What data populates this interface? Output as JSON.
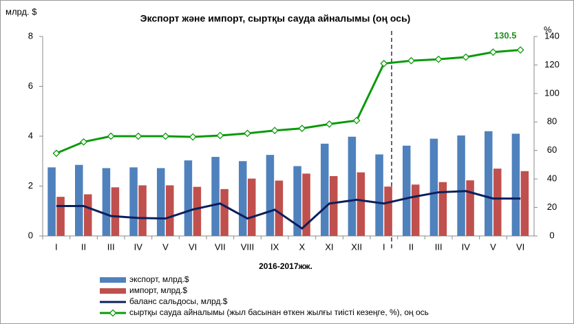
{
  "chart_data": {
    "type": "bar_line",
    "title": "Экспорт және импорт, сыртқы сауда айналымы (оң ось)",
    "y_label": "млрд. $",
    "y2_label": "%",
    "x_label": "2016-2017жж.",
    "categories": [
      "I",
      "II",
      "III",
      "IV",
      "V",
      "VI",
      "VII",
      "VIII",
      "IX",
      "X",
      "XI",
      "XII",
      "I",
      "II",
      "III",
      "IV",
      "V",
      "VI"
    ],
    "ylim": [
      0,
      8
    ],
    "yticks": [
      0,
      2,
      4,
      6,
      8
    ],
    "y2lim": [
      0,
      140
    ],
    "y2ticks": [
      0,
      20,
      40,
      60,
      80,
      100,
      120,
      140
    ],
    "series": [
      {
        "name": "экспорт, млрд.$",
        "type": "bar",
        "color": "#4f81bd",
        "values": [
          2.75,
          2.85,
          2.72,
          2.75,
          2.72,
          3.03,
          3.17,
          3.0,
          3.25,
          2.8,
          3.7,
          3.98,
          3.27,
          3.62,
          3.9,
          4.03,
          4.2,
          4.1
        ]
      },
      {
        "name": "импорт, млрд.$",
        "type": "bar",
        "color": "#c0504d",
        "values": [
          1.57,
          1.67,
          1.95,
          2.03,
          2.03,
          1.97,
          1.88,
          2.3,
          2.22,
          2.5,
          2.4,
          2.55,
          1.98,
          2.06,
          2.16,
          2.23,
          2.7,
          2.6
        ]
      },
      {
        "name": "баланс сальдосы, млрд.$",
        "type": "line",
        "color": "#0a1f5c",
        "values": [
          1.2,
          1.2,
          0.8,
          0.72,
          0.7,
          1.06,
          1.3,
          0.7,
          1.05,
          0.3,
          1.3,
          1.45,
          1.3,
          1.55,
          1.75,
          1.8,
          1.5,
          1.5
        ]
      },
      {
        "name": "сыртқы сауда айналымы (жыл басынан өткен жылғы тиісті кезеңге, %), оң ось",
        "type": "line",
        "axis": "y2",
        "color": "#0a9a0a",
        "marker": "diamond",
        "values": [
          58,
          66,
          70,
          70,
          70,
          69.5,
          70.5,
          72,
          74,
          75.5,
          78.5,
          81,
          121,
          123,
          124,
          125.5,
          129,
          130.5
        ]
      }
    ]
  }
}
